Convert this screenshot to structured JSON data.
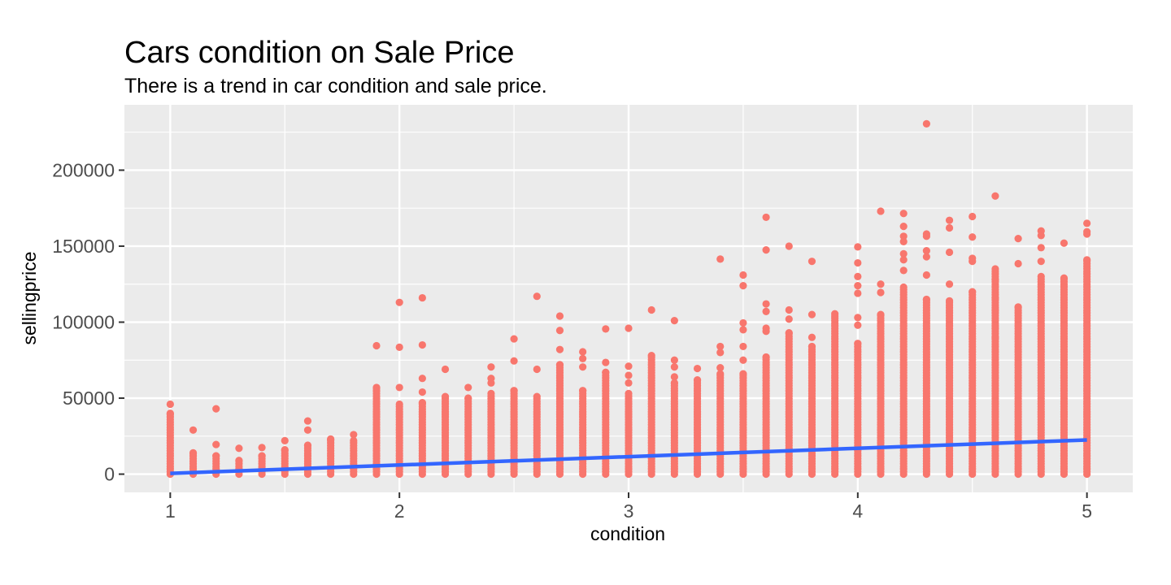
{
  "chart_data": {
    "type": "scatter",
    "title": "Cars condition on Sale Price",
    "subtitle": "There is a trend in car condition and sale price.",
    "xlabel": "condition",
    "ylabel": "sellingprice",
    "x_ticks": [
      "1",
      "2",
      "3",
      "4",
      "5"
    ],
    "y_ticks": [
      "0",
      "50000",
      "100000",
      "150000",
      "200000"
    ],
    "xlim": [
      0.8,
      5.2
    ],
    "ylim": [
      -12000,
      243000
    ],
    "grid": true,
    "point_color": "#F8766D",
    "panel_background": "#EBEBEB",
    "grid_color": "#FFFFFF",
    "trend_color": "#3366FF",
    "columns": [
      {
        "x": 1.0,
        "max": 46000,
        "dense_top": 40000,
        "outliers": []
      },
      {
        "x": 1.1,
        "max": 29000,
        "dense_top": 14000,
        "outliers": []
      },
      {
        "x": 1.2,
        "max": 43000,
        "dense_top": 12000,
        "outliers": [
          19500
        ]
      },
      {
        "x": 1.3,
        "max": 17000,
        "dense_top": 9000,
        "outliers": []
      },
      {
        "x": 1.4,
        "max": 17500,
        "dense_top": 12000,
        "outliers": []
      },
      {
        "x": 1.5,
        "max": 22000,
        "dense_top": 16000,
        "outliers": []
      },
      {
        "x": 1.6,
        "max": 35000,
        "dense_top": 19000,
        "outliers": [
          29000
        ]
      },
      {
        "x": 1.7,
        "max": 23000,
        "dense_top": 23000,
        "outliers": []
      },
      {
        "x": 1.8,
        "max": 26000,
        "dense_top": 22000,
        "outliers": []
      },
      {
        "x": 1.9,
        "max": 84500,
        "dense_top": 57000,
        "outliers": []
      },
      {
        "x": 2.0,
        "max": 113000,
        "dense_top": 46000,
        "outliers": [
          83500,
          57000
        ]
      },
      {
        "x": 2.1,
        "max": 116000,
        "dense_top": 47000,
        "outliers": [
          85000,
          63000,
          54000
        ]
      },
      {
        "x": 2.2,
        "max": 69000,
        "dense_top": 51000,
        "outliers": []
      },
      {
        "x": 2.3,
        "max": 57000,
        "dense_top": 50000,
        "outliers": []
      },
      {
        "x": 2.4,
        "max": 70500,
        "dense_top": 53000,
        "outliers": [
          63000,
          60000
        ]
      },
      {
        "x": 2.5,
        "max": 89000,
        "dense_top": 55000,
        "outliers": [
          74500
        ]
      },
      {
        "x": 2.6,
        "max": 117000,
        "dense_top": 51000,
        "outliers": [
          69000
        ]
      },
      {
        "x": 2.7,
        "max": 104000,
        "dense_top": 72000,
        "outliers": [
          94500,
          82000
        ]
      },
      {
        "x": 2.8,
        "max": 80500,
        "dense_top": 55000,
        "outliers": [
          76000,
          70500
        ]
      },
      {
        "x": 2.9,
        "max": 95500,
        "dense_top": 67000,
        "outliers": [
          73500
        ]
      },
      {
        "x": 3.0,
        "max": 96000,
        "dense_top": 53000,
        "outliers": [
          71000,
          65000,
          60000
        ]
      },
      {
        "x": 3.1,
        "max": 108000,
        "dense_top": 78000,
        "outliers": []
      },
      {
        "x": 3.2,
        "max": 101000,
        "dense_top": 60000,
        "outliers": [
          75000,
          70500,
          64000
        ]
      },
      {
        "x": 3.3,
        "max": 69500,
        "dense_top": 62000,
        "outliers": []
      },
      {
        "x": 3.4,
        "max": 141500,
        "dense_top": 66000,
        "outliers": [
          84000,
          80000,
          70000
        ]
      },
      {
        "x": 3.5,
        "max": 131000,
        "dense_top": 66000,
        "outliers": [
          124000,
          99500,
          95000,
          84000,
          75000
        ]
      },
      {
        "x": 3.6,
        "max": 169000,
        "dense_top": 77000,
        "outliers": [
          147500,
          112000,
          107000,
          96000,
          94000
        ]
      },
      {
        "x": 3.7,
        "max": 150000,
        "dense_top": 93000,
        "outliers": [
          108000,
          102000
        ]
      },
      {
        "x": 3.8,
        "max": 140000,
        "dense_top": 84000,
        "outliers": [
          105000,
          90000
        ]
      },
      {
        "x": 3.9,
        "max": 105500,
        "dense_top": 104000,
        "outliers": []
      },
      {
        "x": 4.0,
        "max": 149500,
        "dense_top": 86000,
        "outliers": [
          139000,
          130000,
          124000,
          119000,
          103000,
          98000
        ]
      },
      {
        "x": 4.1,
        "max": 173000,
        "dense_top": 105000,
        "outliers": [
          125000,
          119500
        ]
      },
      {
        "x": 4.2,
        "max": 171500,
        "dense_top": 123000,
        "outliers": [
          163000,
          156500,
          153000,
          145000,
          141000,
          134000
        ]
      },
      {
        "x": 4.3,
        "max": 230500,
        "dense_top": 115000,
        "outliers": [
          158000,
          156500,
          147000,
          143000,
          131000
        ]
      },
      {
        "x": 4.4,
        "max": 167000,
        "dense_top": 114000,
        "outliers": [
          162000,
          146000,
          125000
        ]
      },
      {
        "x": 4.5,
        "max": 169500,
        "dense_top": 120000,
        "outliers": [
          156000,
          142000,
          140000
        ]
      },
      {
        "x": 4.6,
        "max": 183000,
        "dense_top": 135000,
        "outliers": [
          128000,
          116000,
          108000,
          96000,
          90000
        ]
      },
      {
        "x": 4.7,
        "max": 155000,
        "dense_top": 110000,
        "outliers": [
          138500
        ]
      },
      {
        "x": 4.8,
        "max": 160000,
        "dense_top": 130000,
        "outliers": [
          157000,
          149000,
          140000
        ]
      },
      {
        "x": 4.9,
        "max": 152000,
        "dense_top": 129000,
        "outliers": []
      },
      {
        "x": 5.0,
        "max": 165000,
        "dense_top": 141000,
        "outliers": [
          159500,
          158000
        ]
      }
    ],
    "trend_line": {
      "x": [
        1,
        5
      ],
      "y": [
        500,
        22500
      ]
    }
  }
}
